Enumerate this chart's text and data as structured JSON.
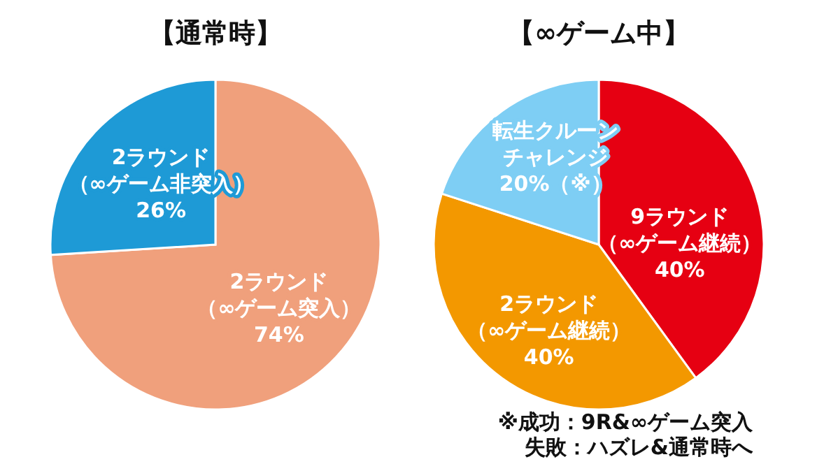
{
  "chart_data": [
    {
      "type": "pie",
      "title": "【通常時】",
      "categories": [
        "2ラウンド（∞ゲーム突入）",
        "2ラウンド（∞ゲーム非突入）"
      ],
      "values": [
        74,
        26
      ],
      "colors": [
        "#f0a07c",
        "#1e9ad6"
      ],
      "value_labels": [
        "74%",
        "26%"
      ]
    },
    {
      "type": "pie",
      "title": "【∞ゲーム中】",
      "categories": [
        "9ラウンド（∞ゲーム継続）",
        "2ラウンド（∞ゲーム継続）",
        "転生クルーンチャレンジ"
      ],
      "values": [
        40,
        40,
        20
      ],
      "colors": [
        "#e60012",
        "#f39800",
        "#7ecef4"
      ],
      "value_labels": [
        "40%",
        "40%",
        "20%（※）"
      ],
      "annotations": [
        "※成功：9R&∞ゲーム突入",
        "失敗：ハズレ&通常時へ"
      ]
    }
  ]
}
